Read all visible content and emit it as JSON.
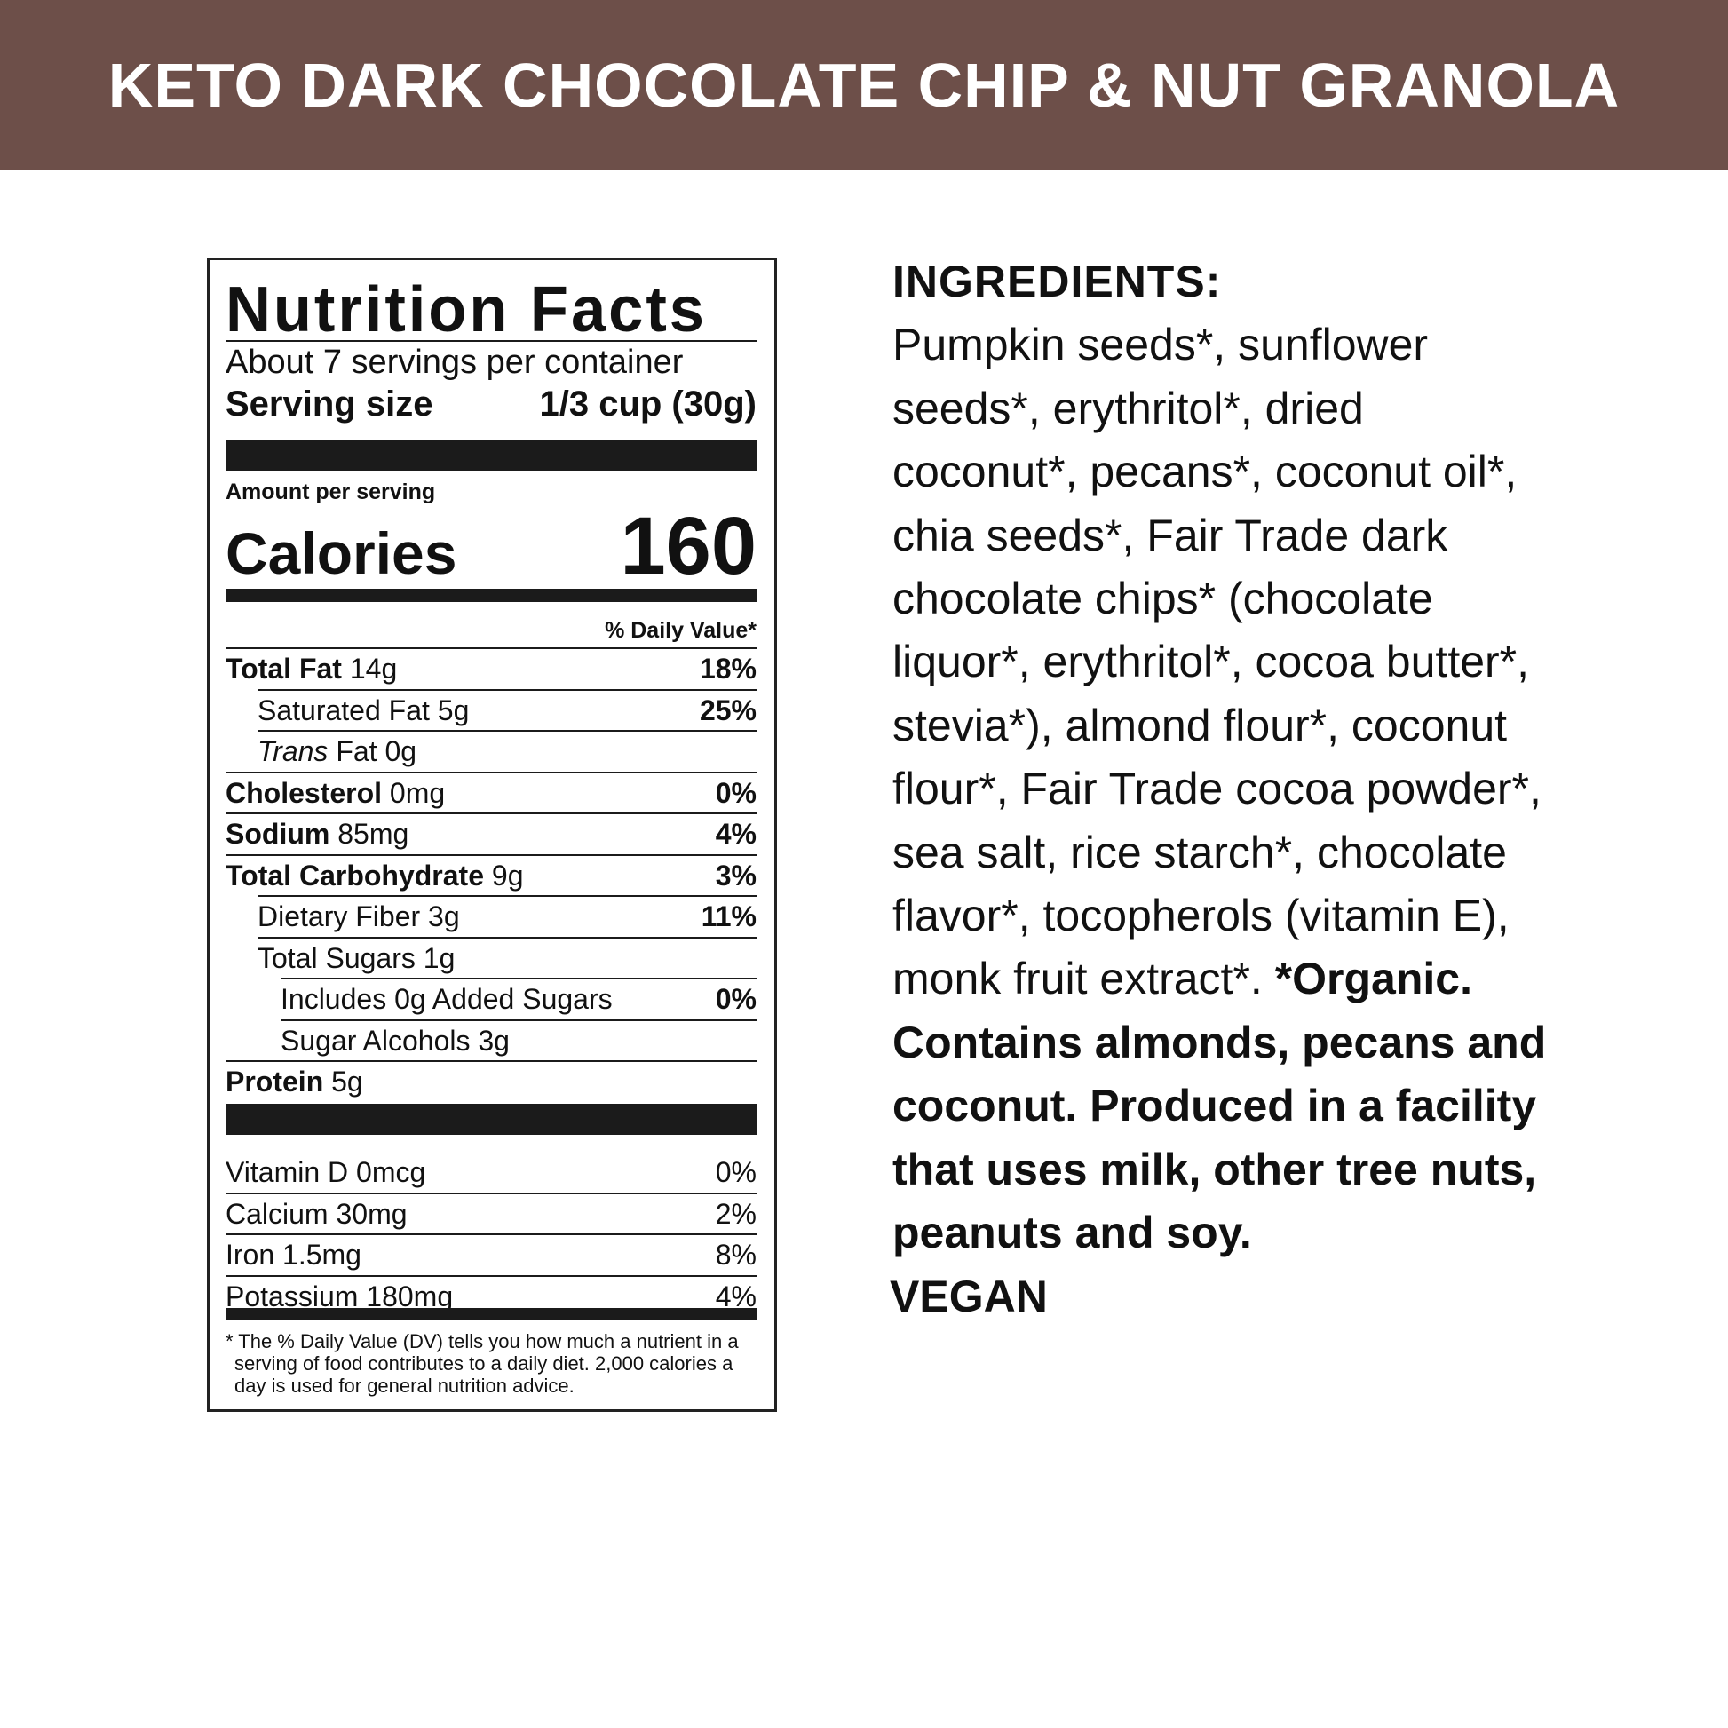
{
  "header": {
    "title": "KETO DARK CHOCOLATE CHIP & NUT GRANOLA",
    "bg_color": "#6d4f49"
  },
  "nutrition": {
    "title": "Nutrition Facts",
    "servings_per_container": "About 7 servings per container",
    "serving_size_label": "Serving size",
    "serving_size_value": "1/3 cup (30g)",
    "amount_per_serving": "Amount per serving",
    "calories_label": "Calories",
    "calories_value": "160",
    "dv_header": "% Daily Value*",
    "rows": [
      {
        "name": "Total Fat",
        "amount": "14g",
        "dv": "18%",
        "bold": true,
        "indent": 0
      },
      {
        "name": "Saturated Fat",
        "amount": "5g",
        "dv": "25%",
        "bold": false,
        "indent": 1
      },
      {
        "name": "Trans Fat",
        "amount": "0g",
        "dv": "",
        "bold": false,
        "indent": 1,
        "italic_first": true
      },
      {
        "name": "Cholesterol",
        "amount": "0mg",
        "dv": "0%",
        "bold": true,
        "indent": 0
      },
      {
        "name": "Sodium",
        "amount": "85mg",
        "dv": "4%",
        "bold": true,
        "indent": 0
      },
      {
        "name": "Total Carbohydrate",
        "amount": "9g",
        "dv": "3%",
        "bold": true,
        "indent": 0
      },
      {
        "name": "Dietary Fiber",
        "amount": "3g",
        "dv": "11%",
        "bold": false,
        "indent": 1
      },
      {
        "name": "Total Sugars",
        "amount": "1g",
        "dv": "",
        "bold": false,
        "indent": 1
      },
      {
        "name": "Includes 0g Added Sugars",
        "amount": "",
        "dv": "0%",
        "bold": false,
        "indent": 2
      },
      {
        "name": "Sugar Alcohols",
        "amount": "3g",
        "dv": "",
        "bold": false,
        "indent": 2
      },
      {
        "name": "Protein",
        "amount": "5g",
        "dv": "",
        "bold": true,
        "indent": 0
      }
    ],
    "vitamins": [
      {
        "name": "Vitamin D",
        "amount": "0mcg",
        "dv": "0%"
      },
      {
        "name": "Calcium",
        "amount": "30mg",
        "dv": "2%"
      },
      {
        "name": "Iron",
        "amount": "1.5mg",
        "dv": "8%"
      },
      {
        "name": "Potassium",
        "amount": "180mg",
        "dv": "4%"
      }
    ],
    "footnote_lines": [
      "* The % Daily Value (DV) tells you how much a nutrient in a",
      "serving of food contributes to a daily diet. 2,000 calories a",
      "day is used for general nutrition advice."
    ]
  },
  "ingredients": {
    "heading": "INGREDIENTS:",
    "lines": [
      "Pumpkin seeds*, sunflower",
      "seeds*, erythritol*, dried",
      "coconut*, pecans*, coconut oil*,",
      "chia seeds*, Fair Trade dark",
      "chocolate chips* (chocolate",
      "liquor*, erythritol*, cocoa butter*,",
      "stevia*), almond flour*, coconut",
      "flour*, Fair Trade cocoa powder*,",
      "sea salt, rice starch*, chocolate",
      "flavor*, tocopherols (vitamin E),"
    ],
    "last_line_regular": "monk fruit extract*. ",
    "last_line_bold": "*Organic.",
    "bold_lines": [
      "Contains almonds, pecans and",
      "coconut. Produced in a facility",
      "that uses milk, other tree nuts,",
      "peanuts and soy."
    ],
    "vegan": "VEGAN"
  }
}
